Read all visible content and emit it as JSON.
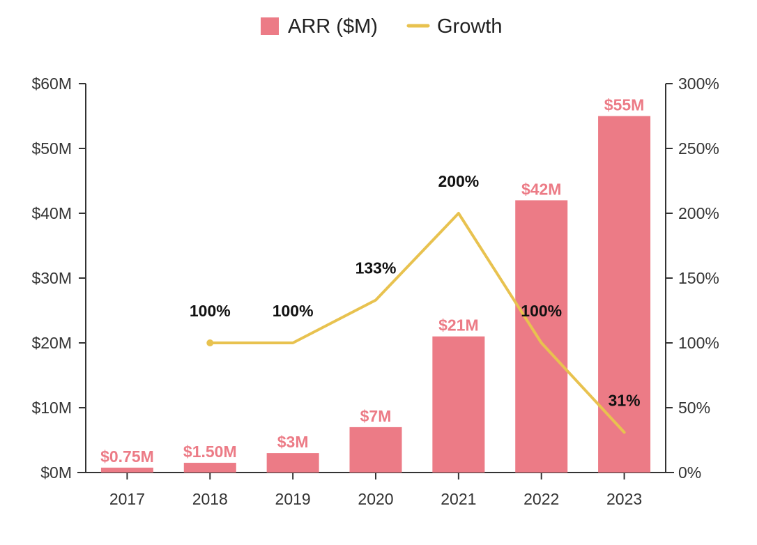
{
  "chart_data": {
    "type": "bar+line",
    "categories": [
      "2017",
      "2018",
      "2019",
      "2020",
      "2021",
      "2022",
      "2023"
    ],
    "series": [
      {
        "name": "ARR ($M)",
        "type": "bar",
        "axis": "left",
        "color": "#ec7b86",
        "values": [
          0.75,
          1.5,
          3,
          7,
          21,
          42,
          55
        ],
        "labels": [
          "$0.75M",
          "$1.50M",
          "$3M",
          "$7M",
          "$21M",
          "$42M",
          "$55M"
        ]
      },
      {
        "name": "Growth",
        "type": "line",
        "axis": "right",
        "color": "#e8c24f",
        "values": [
          null,
          100,
          100,
          133,
          200,
          100,
          31
        ],
        "labels": [
          "",
          "100%",
          "100%",
          "133%",
          "200%",
          "100%",
          "31%"
        ]
      }
    ],
    "left_axis": {
      "ylim": [
        0,
        60
      ],
      "ticks": [
        0,
        10,
        20,
        30,
        40,
        50,
        60
      ],
      "tick_labels": [
        "$0M",
        "$10M",
        "$20M",
        "$30M",
        "$40M",
        "$50M",
        "$60M"
      ]
    },
    "right_axis": {
      "ylim": [
        0,
        300
      ],
      "ticks": [
        0,
        50,
        100,
        150,
        200,
        250,
        300
      ],
      "tick_labels": [
        "0%",
        "50%",
        "100%",
        "150%",
        "200%",
        "250%",
        "300%"
      ]
    },
    "legend": {
      "position": "top-center",
      "entries": [
        "ARR ($M)",
        "Growth"
      ]
    },
    "grid": false,
    "title": "",
    "xlabel": "",
    "ylabel": ""
  }
}
